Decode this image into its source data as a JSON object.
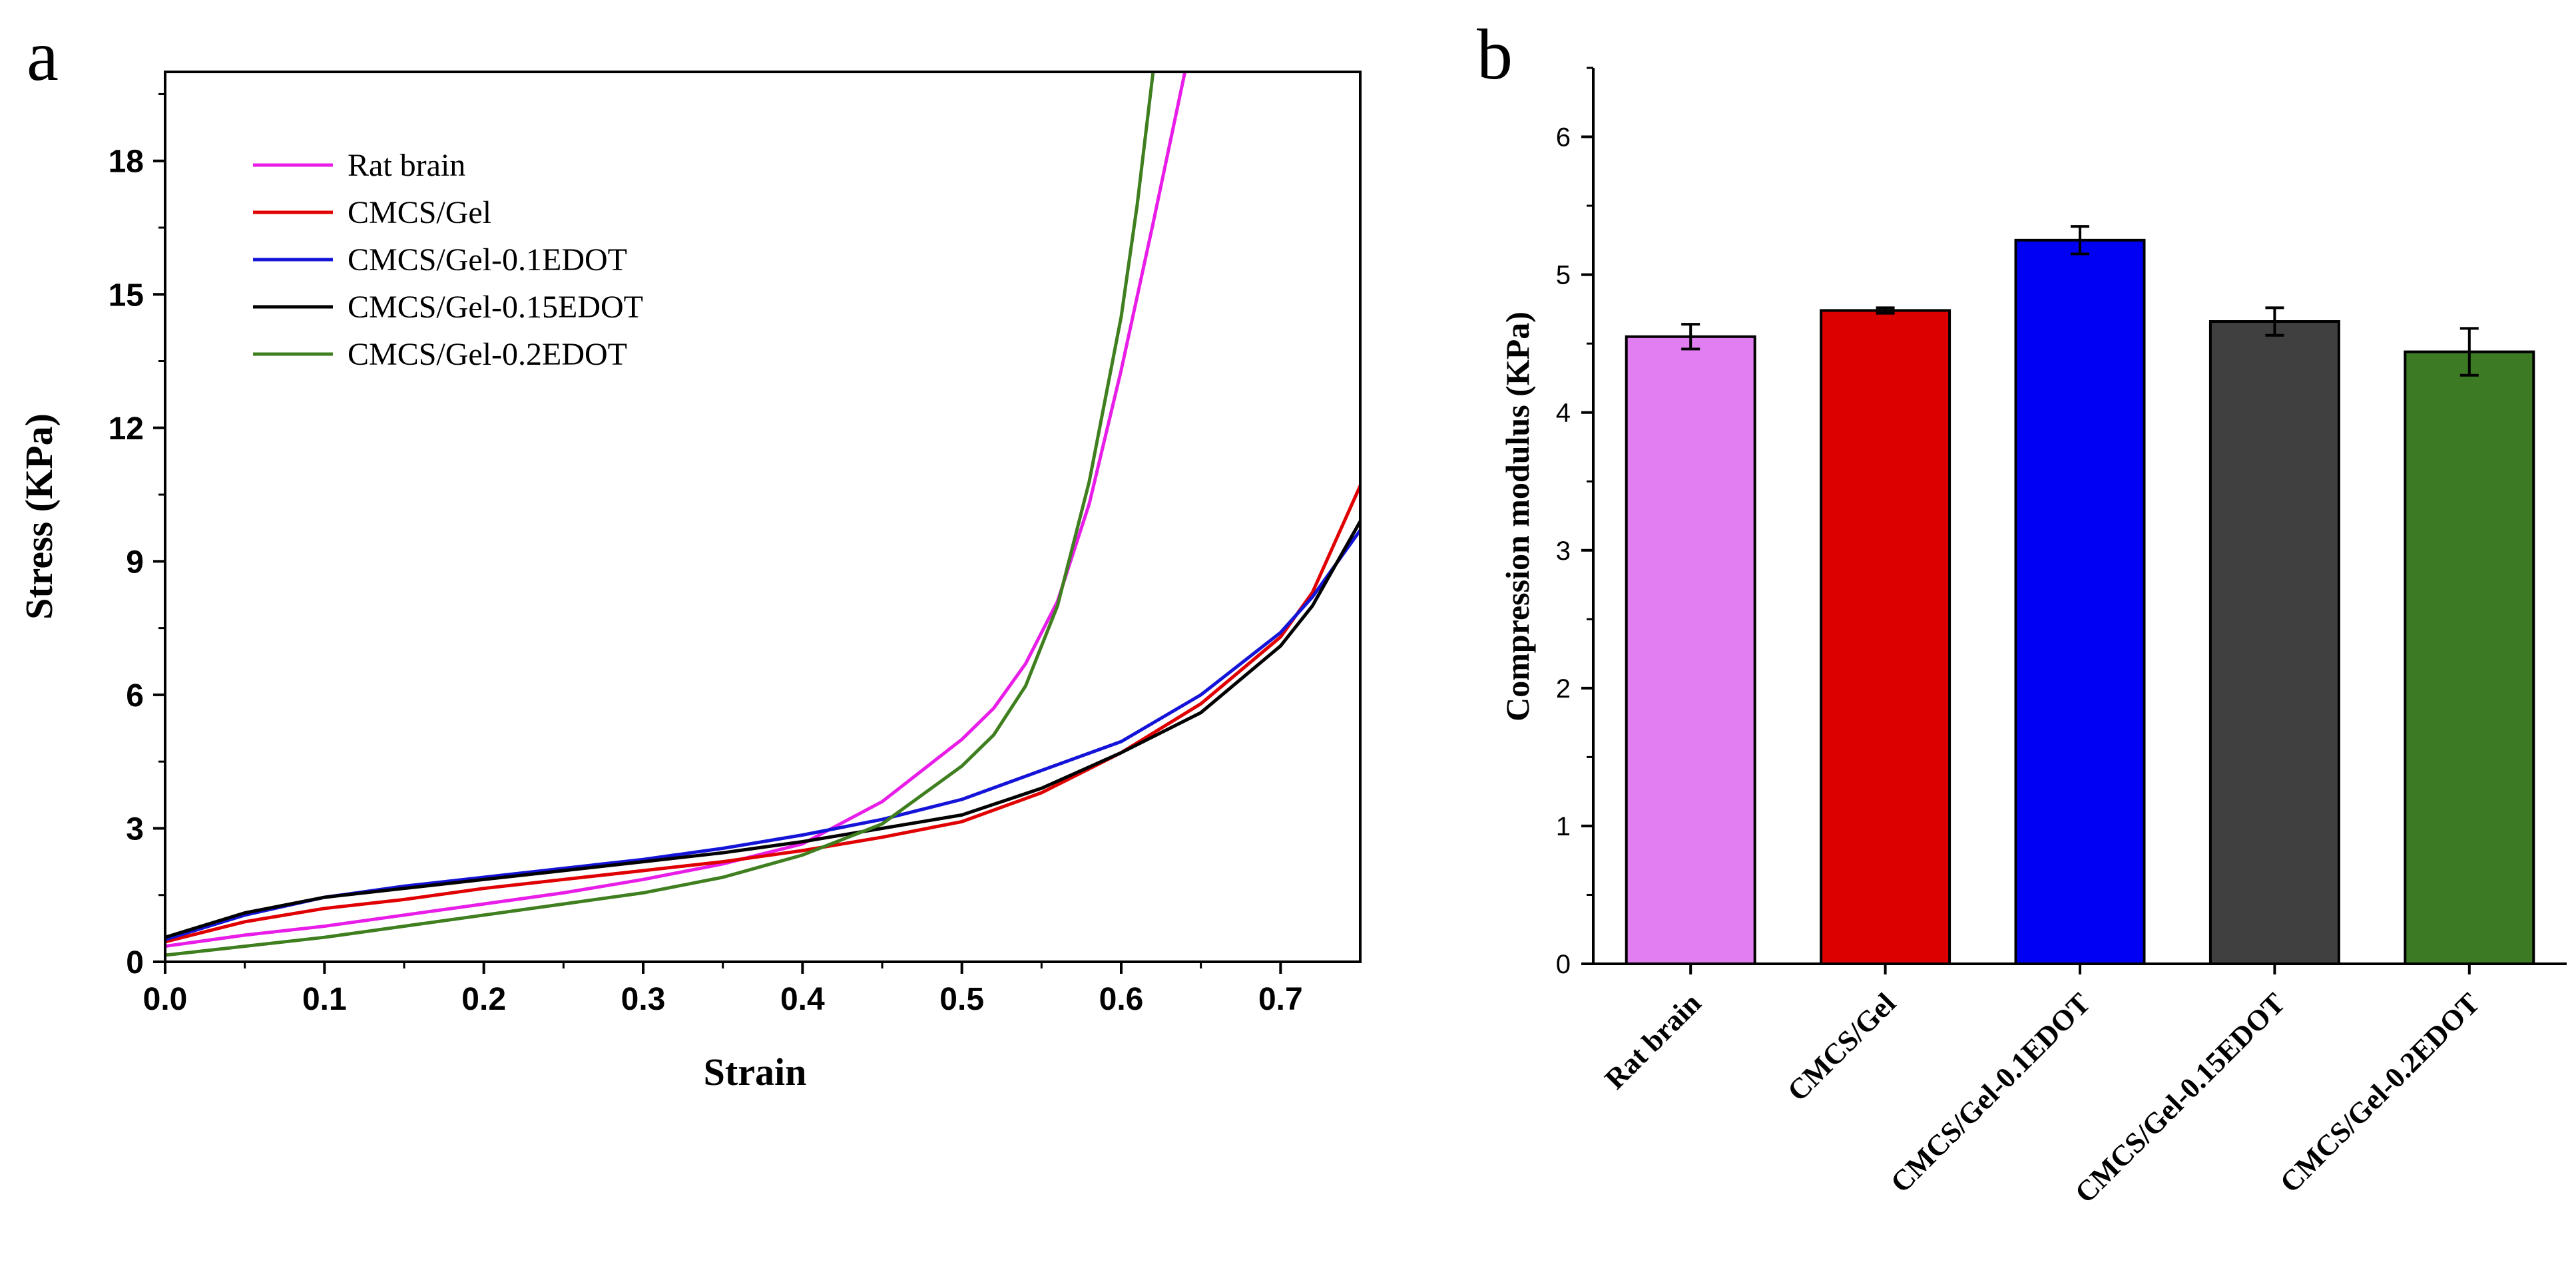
{
  "panels": {
    "a": "a",
    "b": "b"
  },
  "chart_data": [
    {
      "type": "line",
      "xlabel": "Strain",
      "ylabel": "Stress (KPa)",
      "xlim": [
        0,
        0.75
      ],
      "ylim": [
        0,
        20
      ],
      "xticks": [
        "0.0",
        "0.1",
        "0.2",
        "0.3",
        "0.4",
        "0.5",
        "0.6",
        "0.7"
      ],
      "yticks": [
        "0",
        "3",
        "6",
        "9",
        "12",
        "15",
        "18"
      ],
      "legend_position": "top-left",
      "grid": false,
      "series": [
        {
          "name": "Rat brain",
          "color": "#e81ee8",
          "x": [
            0,
            0.05,
            0.1,
            0.15,
            0.2,
            0.25,
            0.3,
            0.35,
            0.4,
            0.45,
            0.5,
            0.52,
            0.54,
            0.56,
            0.58,
            0.6,
            0.62,
            0.64
          ],
          "y": [
            0.35,
            0.6,
            0.8,
            1.05,
            1.3,
            1.55,
            1.85,
            2.2,
            2.65,
            3.6,
            5.0,
            5.7,
            6.7,
            8.1,
            10.3,
            13.3,
            16.6,
            20.0
          ]
        },
        {
          "name": "CMCS/Gel",
          "color": "#e00000",
          "x": [
            0,
            0.05,
            0.1,
            0.15,
            0.2,
            0.25,
            0.3,
            0.35,
            0.4,
            0.45,
            0.5,
            0.55,
            0.6,
            0.65,
            0.7,
            0.72,
            0.75
          ],
          "y": [
            0.45,
            0.9,
            1.2,
            1.4,
            1.65,
            1.85,
            2.05,
            2.25,
            2.5,
            2.8,
            3.15,
            3.8,
            4.7,
            5.8,
            7.3,
            8.3,
            10.7
          ]
        },
        {
          "name": "CMCS/Gel-0.1EDOT",
          "color": "#1414d8",
          "x": [
            0,
            0.05,
            0.1,
            0.15,
            0.2,
            0.25,
            0.3,
            0.35,
            0.4,
            0.45,
            0.5,
            0.55,
            0.6,
            0.65,
            0.7,
            0.72,
            0.75
          ],
          "y": [
            0.5,
            1.05,
            1.45,
            1.7,
            1.9,
            2.1,
            2.3,
            2.55,
            2.85,
            3.2,
            3.65,
            4.3,
            4.95,
            6.0,
            7.4,
            8.2,
            9.7
          ]
        },
        {
          "name": "CMCS/Gel-0.15EDOT",
          "color": "#000000",
          "x": [
            0,
            0.05,
            0.1,
            0.15,
            0.2,
            0.25,
            0.3,
            0.35,
            0.4,
            0.45,
            0.5,
            0.55,
            0.6,
            0.65,
            0.7,
            0.72,
            0.75
          ],
          "y": [
            0.55,
            1.1,
            1.45,
            1.65,
            1.85,
            2.05,
            2.25,
            2.45,
            2.7,
            3.0,
            3.3,
            3.9,
            4.7,
            5.6,
            7.1,
            8.0,
            9.9
          ]
        },
        {
          "name": "CMCS/Gel-0.2EDOT",
          "color": "#3f7f1f",
          "x": [
            0,
            0.05,
            0.1,
            0.15,
            0.2,
            0.25,
            0.3,
            0.35,
            0.4,
            0.45,
            0.5,
            0.52,
            0.54,
            0.56,
            0.58,
            0.6,
            0.61,
            0.62
          ],
          "y": [
            0.15,
            0.35,
            0.55,
            0.8,
            1.05,
            1.3,
            1.55,
            1.9,
            2.4,
            3.1,
            4.4,
            5.1,
            6.2,
            8.0,
            10.8,
            14.5,
            17.0,
            20.0
          ]
        }
      ]
    },
    {
      "type": "bar",
      "xlabel": "",
      "ylabel": "Compression modulus (KPa)",
      "ylim": [
        0,
        6.5
      ],
      "yticks": [
        "0",
        "1",
        "2",
        "3",
        "4",
        "5",
        "6"
      ],
      "grid": false,
      "categories": [
        "Rat brain",
        "CMCS/Gel",
        "CMCS/Gel-0.1EDOT",
        "CMCS/Gel-0.15EDOT",
        "CMCS/Gel-0.2EDOT"
      ],
      "values": [
        4.55,
        4.74,
        5.25,
        4.66,
        4.44
      ],
      "errors": [
        0.09,
        0.02,
        0.1,
        0.1,
        0.17
      ],
      "colors": [
        "#e17ff2",
        "#dd0000",
        "#0000f2",
        "#404040",
        "#3d7a24"
      ]
    }
  ]
}
